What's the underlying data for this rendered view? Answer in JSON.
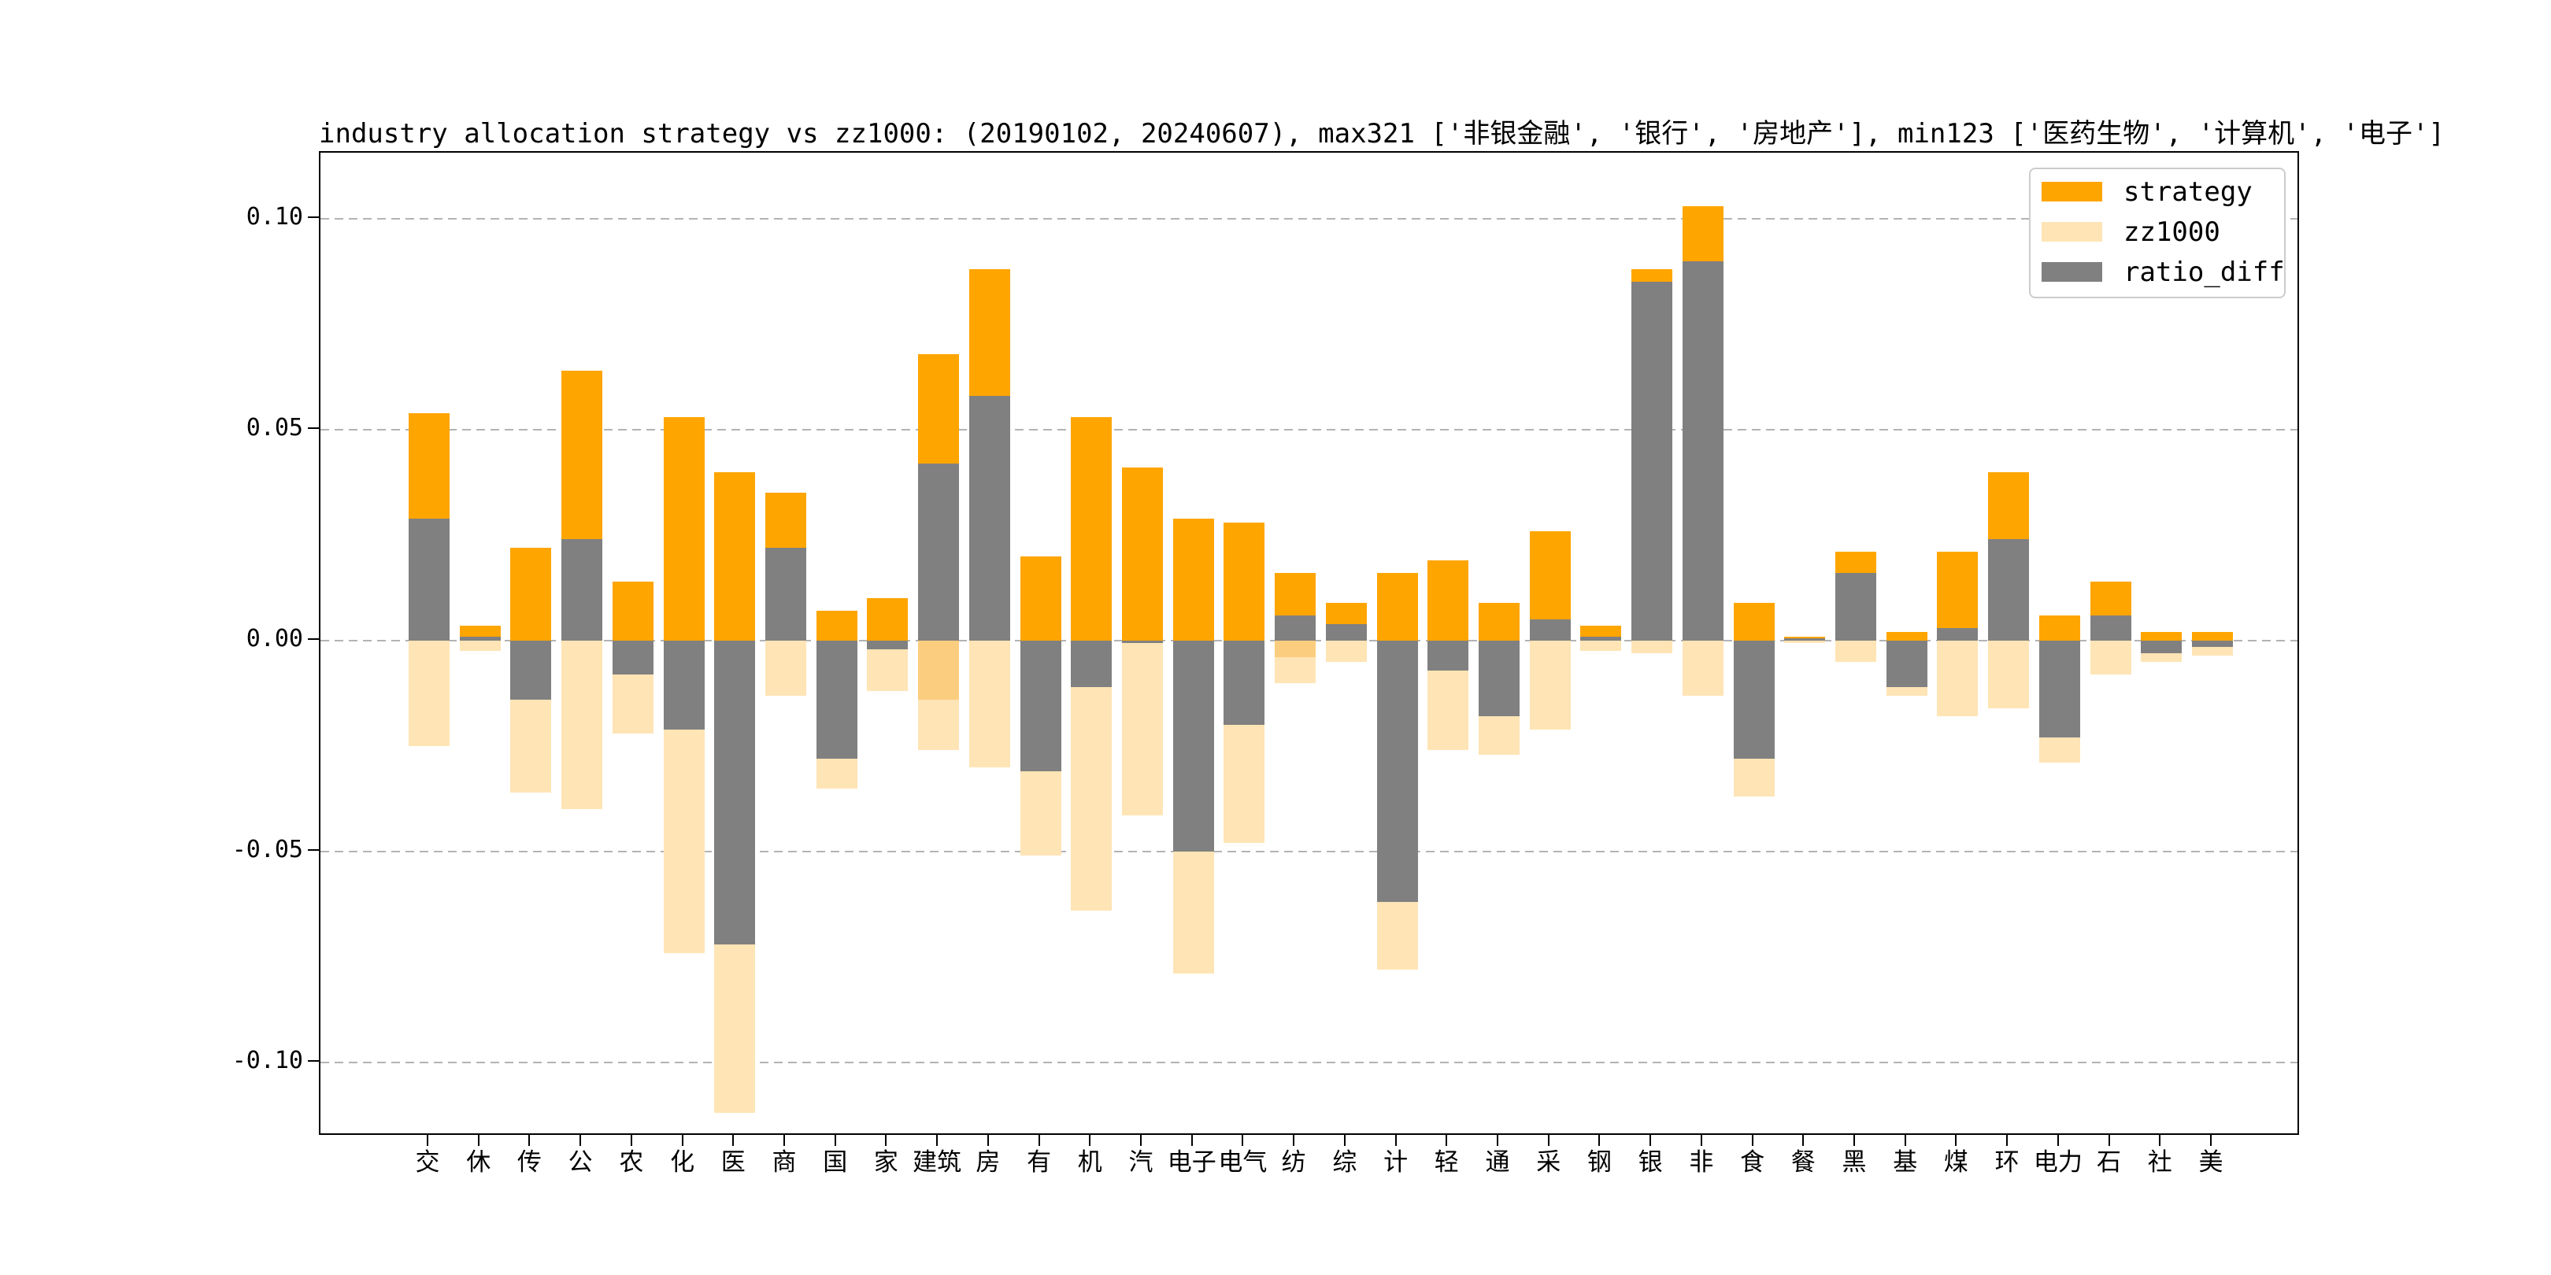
{
  "title": "industry allocation strategy vs zz1000: (20190102, 20240607), max321 ['非银金融', '银行', '房地产'], min123 ['医药生物', '计算机', '电子']",
  "legend": {
    "items": [
      {
        "label": "strategy",
        "color": "#FFA500"
      },
      {
        "label": "zz1000",
        "color": "#FFE4B5"
      },
      {
        "label": "ratio_diff",
        "color": "#808080"
      }
    ]
  },
  "axes": {
    "ytick_labels": [
      "0.10",
      "0.05",
      "0.00",
      "-0.05",
      "-0.10"
    ],
    "ytick_values": [
      0.1,
      0.05,
      0.0,
      -0.05,
      -0.1
    ],
    "grid": "dashed horizontal"
  },
  "chart_data": {
    "type": "bar",
    "title": "industry allocation strategy vs zz1000: (20190102, 20240607), max321 ['非银金融', '银行', '房地产'], min123 ['医药生物', '计算机', '电子']",
    "xlabel": "",
    "ylabel": "",
    "ylim": [
      -0.1175,
      0.1157
    ],
    "legend_position": "upper right",
    "note": "strategy plotted upward from 0; zz1000 plotted downward from 0 (values listed positive); ratio_diff = strategy - zz1000 plotted signed and drawn on top",
    "categories": [
      "交",
      "休",
      "传",
      "公",
      "农",
      "化",
      "医",
      "商",
      "国",
      "家",
      "建筑",
      "房",
      "有",
      "机",
      "汽",
      "电子",
      "电气",
      "纺",
      "综",
      "计",
      "轻",
      "通",
      "采",
      "钢",
      "银",
      "非",
      "食",
      "餐",
      "黑",
      "基",
      "煤",
      "环",
      "电力",
      "石",
      "社",
      "美"
    ],
    "series": [
      {
        "name": "strategy",
        "color": "#FFA500",
        "values": [
          0.054,
          0.0035,
          0.022,
          0.064,
          0.014,
          0.053,
          0.04,
          0.035,
          0.007,
          0.01,
          0.068,
          0.088,
          0.02,
          0.053,
          0.041,
          0.029,
          0.028,
          0.016,
          0.009,
          0.016,
          0.019,
          0.009,
          0.026,
          0.0035,
          0.088,
          0.103,
          0.009,
          0.001,
          0.021,
          0.002,
          0.021,
          0.04,
          0.006,
          0.014,
          0.002,
          0.002
        ]
      },
      {
        "name": "zz1000",
        "color": "#FFE4B5",
        "values": [
          0.025,
          0.0025,
          0.036,
          0.04,
          0.022,
          0.074,
          0.112,
          0.013,
          0.035,
          0.012,
          0.026,
          0.03,
          0.051,
          0.064,
          0.0415,
          0.079,
          0.048,
          0.01,
          0.005,
          0.078,
          0.026,
          0.027,
          0.021,
          0.0025,
          0.003,
          0.013,
          0.037,
          0.0005,
          0.005,
          0.013,
          0.018,
          0.016,
          0.029,
          0.008,
          0.005,
          0.0035
        ]
      },
      {
        "name": "ratio_diff",
        "color": "#808080",
        "values": [
          0.029,
          0.001,
          -0.014,
          0.024,
          -0.008,
          -0.021,
          -0.072,
          0.022,
          -0.028,
          -0.002,
          0.042,
          0.058,
          -0.031,
          -0.011,
          -0.0005,
          -0.05,
          -0.02,
          0.006,
          0.004,
          -0.062,
          -0.007,
          -0.018,
          0.005,
          0.001,
          0.085,
          0.09,
          -0.028,
          0.0005,
          0.016,
          -0.011,
          0.003,
          0.024,
          -0.023,
          0.006,
          -0.003,
          -0.0015
        ]
      }
    ],
    "zz_overlap_bands": [
      {
        "category": "建筑",
        "from": 0,
        "to": -0.014,
        "color": "#FBCD7E"
      },
      {
        "category": "纺",
        "from": 0,
        "to": -0.004,
        "color": "#FBCD7E"
      }
    ]
  }
}
